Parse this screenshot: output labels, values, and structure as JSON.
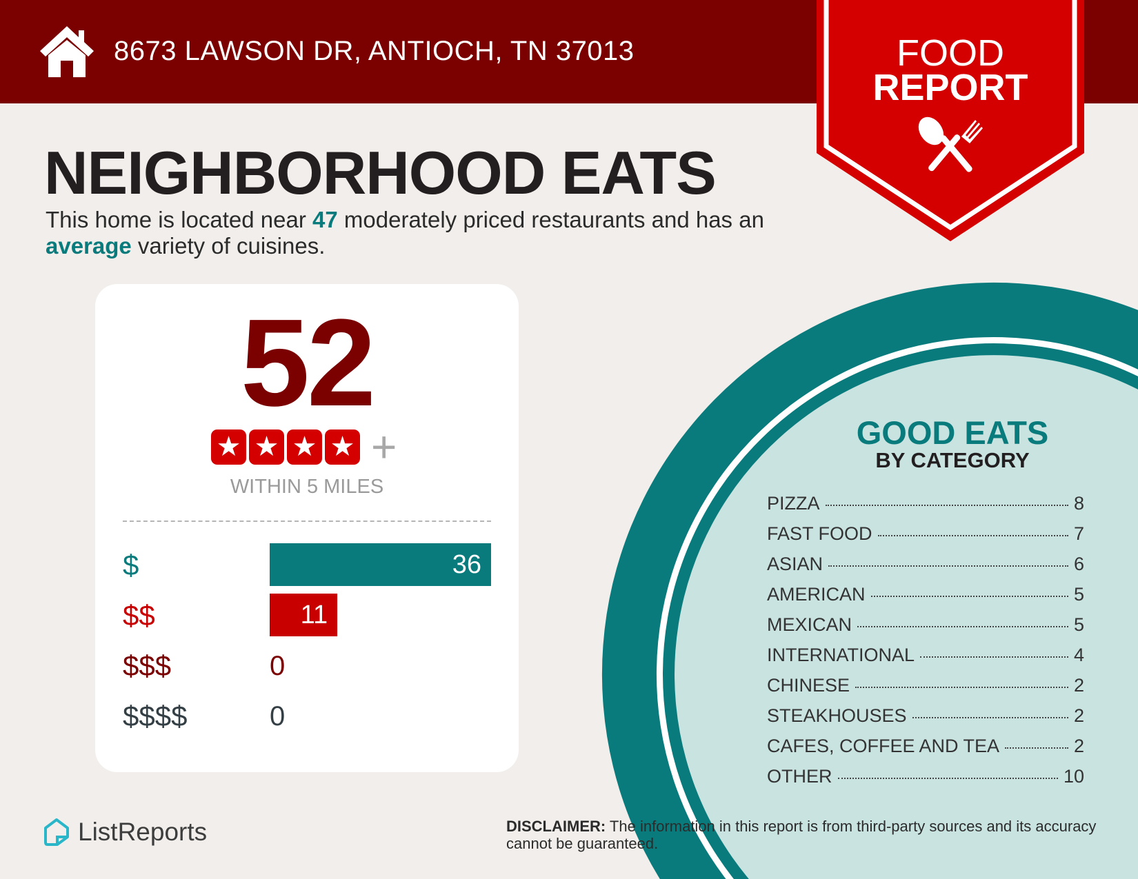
{
  "header": {
    "address": "8673 LAWSON DR, ANTIOCH, TN 37013",
    "home_icon": "house-icon"
  },
  "ribbon": {
    "line1": "FOOD",
    "line2": "REPORT",
    "icon": "spoon-fork-icon",
    "color": "#d40000"
  },
  "title": "NEIGHBORHOOD EATS",
  "summary": {
    "pre": "This home is located near ",
    "count": "47",
    "mid": " moderately priced restaurants and has an ",
    "variety": "average",
    "post": " variety of cuisines."
  },
  "card": {
    "total": "52",
    "stars": [
      "★",
      "★",
      "★",
      "★"
    ],
    "plus": "+",
    "within": "WITHIN 5 MILES",
    "price_levels": [
      {
        "label": "$",
        "value": "36",
        "color": "#0a7b7c"
      },
      {
        "label": "$$",
        "value": "11",
        "color": "#c80000"
      },
      {
        "label": "$$$",
        "value": "0",
        "color": "#7b0000"
      },
      {
        "label": "$$$$",
        "value": "0",
        "color": "#333f44"
      }
    ]
  },
  "categories": {
    "title": "GOOD EATS",
    "subtitle": "BY CATEGORY",
    "items": [
      {
        "name": "PIZZA",
        "count": "8"
      },
      {
        "name": "FAST FOOD",
        "count": "7"
      },
      {
        "name": "ASIAN",
        "count": "6"
      },
      {
        "name": "AMERICAN",
        "count": "5"
      },
      {
        "name": "MEXICAN",
        "count": "5"
      },
      {
        "name": "INTERNATIONAL",
        "count": "4"
      },
      {
        "name": "CHINESE",
        "count": "2"
      },
      {
        "name": "STEAKHOUSES",
        "count": "2"
      },
      {
        "name": "CAFES, COFFEE AND TEA",
        "count": "2"
      },
      {
        "name": "OTHER",
        "count": "10"
      }
    ]
  },
  "footer": {
    "logo": "ListReports",
    "disclaimer_label": "DISCLAIMER:",
    "disclaimer": " The information in this report is from third-party sources and its accuracy cannot be guaranteed."
  },
  "colors": {
    "header": "#7b0000",
    "teal": "#0a7b7c",
    "light_teal": "#c8e3e0",
    "red": "#d40000"
  }
}
